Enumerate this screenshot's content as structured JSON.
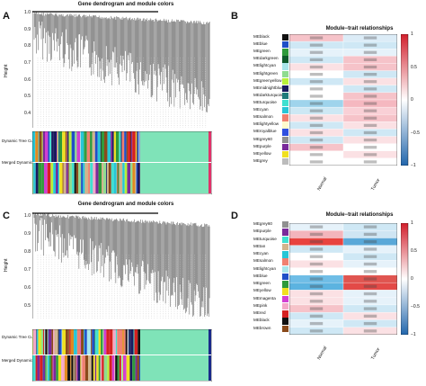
{
  "panels": {
    "A": {
      "letter": "A",
      "title": "Gene dendrogram and module colors",
      "ylabel": "Height",
      "yticks": [
        "1.0",
        "0.9",
        "0.8",
        "0.7",
        "0.6",
        "0.5",
        "0.4"
      ],
      "track1": "Dynamic Tree Cut",
      "track2": "Merged Dynamic"
    },
    "B": {
      "letter": "B",
      "title": "Module−trait relationships",
      "modules": [
        "MEblack",
        "MEblue",
        "MEgreen",
        "MEdarkgreen",
        "MElightcyan",
        "MElightgreen",
        "MEgreenyellow",
        "MEmidnightblue",
        "MEdarkturquoise",
        "MEturquoise",
        "MEcyan",
        "MEsalmon",
        "MElightyellow",
        "MEroyalblue",
        "MEgrey60",
        "MEpurple",
        "MEyellow",
        "MEgrey"
      ],
      "module_colors": [
        "#111111",
        "#1f4fc7",
        "#2e9a3a",
        "#0d5a2a",
        "#a8e6ea",
        "#8fdc8f",
        "#b8f03a",
        "#1a1a5e",
        "#1f7a7a",
        "#40e0d0",
        "#27c6d6",
        "#f08070",
        "#fffacd",
        "#3050e0",
        "#909090",
        "#7a2a9a",
        "#f0e020",
        "#bcbcbc"
      ],
      "columns": [
        "Normal",
        "Tumor"
      ],
      "colorbar_ticks": [
        "1",
        "0.5",
        "0",
        "−0.5",
        "−1"
      ]
    },
    "C": {
      "letter": "C",
      "title": "Gene dendrogram and module colors",
      "ylabel": "Height",
      "yticks": [
        "1.0",
        "0.9",
        "0.8",
        "0.7",
        "0.6",
        "0.5"
      ],
      "track1": "Dynamic Tree Cut",
      "track2": "Merged Dynamic"
    },
    "D": {
      "letter": "D",
      "title": "Module−trait relationships",
      "modules": [
        "MEgrey60",
        "MEpurple",
        "MEturquoise",
        "MEtan",
        "MEcyan",
        "MEsalmon",
        "MElightcyan",
        "MEblue",
        "MEgreen",
        "MEyellow",
        "MEmagenta",
        "MEpink",
        "MEred",
        "MEblack",
        "MEbrown"
      ],
      "module_colors": [
        "#909090",
        "#7a2a9a",
        "#40e0d0",
        "#d2b48c",
        "#27c6d6",
        "#f08070",
        "#a8e6ea",
        "#1f4fc7",
        "#2e9a3a",
        "#f0e020",
        "#d23fd2",
        "#f4a6c8",
        "#d62020",
        "#111111",
        "#8a4a1a"
      ],
      "columns": [
        "Normal",
        "Tumor"
      ],
      "colorbar_ticks": [
        "1",
        "0.5",
        "0",
        "−0.5",
        "−1"
      ]
    }
  }
}
